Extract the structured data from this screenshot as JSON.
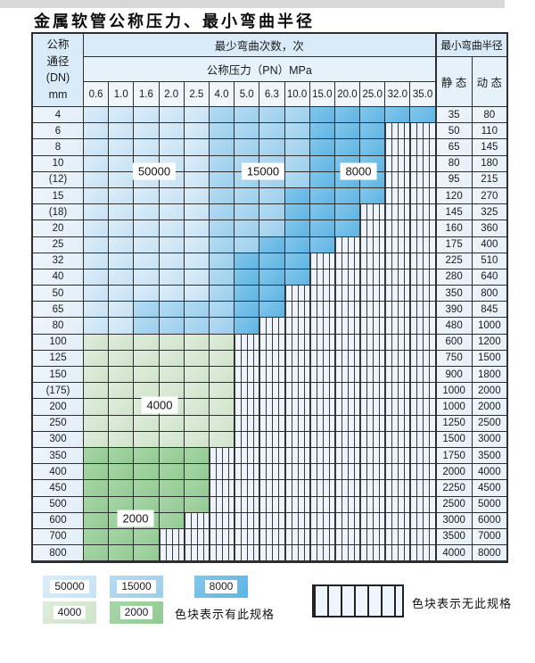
{
  "title": "金属软管公称压力、最小弯曲半径",
  "header": {
    "dn_lines": [
      "公称",
      "通径",
      "(DN)",
      "mm"
    ],
    "bend_header": "最少弯曲次数，次",
    "pn_header": "公称压力（PN）MPa",
    "pressures": [
      "0.6",
      "1.0",
      "1.6",
      "2.0",
      "2.5",
      "4.0",
      "5.0",
      "6.3",
      "10.0",
      "15.0",
      "20.0",
      "25.0",
      "32.0",
      "35.0"
    ],
    "radius_header": "最小弯曲半径",
    "static_label": "静 态",
    "dynamic_label": "动 态"
  },
  "zone_labels": {
    "l50000": "50000",
    "l15000": "15000",
    "l8000": "8000",
    "l4000": "4000",
    "l2000": "2000"
  },
  "rows": [
    {
      "dn": "4",
      "c50": 5,
      "c15": 9,
      "c8": 14,
      "c4": 0,
      "c2": 0,
      "static": "35",
      "dynamic": "80"
    },
    {
      "dn": "6",
      "c50": 5,
      "c15": 9,
      "c8": 12,
      "c4": 0,
      "c2": 0,
      "static": "50",
      "dynamic": "110"
    },
    {
      "dn": "8",
      "c50": 5,
      "c15": 9,
      "c8": 12,
      "c4": 0,
      "c2": 0,
      "static": "65",
      "dynamic": "145"
    },
    {
      "dn": "10",
      "c50": 5,
      "c15": 9,
      "c8": 12,
      "c4": 0,
      "c2": 0,
      "static": "80",
      "dynamic": "180"
    },
    {
      "dn": "(12)",
      "c50": 5,
      "c15": 9,
      "c8": 12,
      "c4": 0,
      "c2": 0,
      "static": "95",
      "dynamic": "215"
    },
    {
      "dn": "15",
      "c50": 5,
      "c15": 8,
      "c8": 12,
      "c4": 0,
      "c2": 0,
      "static": "120",
      "dynamic": "270"
    },
    {
      "dn": "(18)",
      "c50": 5,
      "c15": 8,
      "c8": 11,
      "c4": 0,
      "c2": 0,
      "static": "145",
      "dynamic": "325"
    },
    {
      "dn": "20",
      "c50": 5,
      "c15": 8,
      "c8": 11,
      "c4": 0,
      "c2": 0,
      "static": "160",
      "dynamic": "360"
    },
    {
      "dn": "25",
      "c50": 5,
      "c15": 7,
      "c8": 10,
      "c4": 0,
      "c2": 0,
      "static": "175",
      "dynamic": "400"
    },
    {
      "dn": "32",
      "c50": 5,
      "c15": 6,
      "c8": 9,
      "c4": 0,
      "c2": 0,
      "static": "225",
      "dynamic": "510"
    },
    {
      "dn": "40",
      "c50": 5,
      "c15": 6,
      "c8": 9,
      "c4": 0,
      "c2": 0,
      "static": "280",
      "dynamic": "640"
    },
    {
      "dn": "50",
      "c50": 5,
      "c15": 6,
      "c8": 8,
      "c4": 0,
      "c2": 0,
      "static": "350",
      "dynamic": "800"
    },
    {
      "dn": "65",
      "c50": 2,
      "c15": 6,
      "c8": 8,
      "c4": 0,
      "c2": 0,
      "static": "390",
      "dynamic": "845"
    },
    {
      "dn": "80",
      "c50": 2,
      "c15": 6,
      "c8": 7,
      "c4": 0,
      "c2": 0,
      "static": "480",
      "dynamic": "1000"
    },
    {
      "dn": "100",
      "c50": 0,
      "c15": 0,
      "c8": 0,
      "c4": 6,
      "c2": 0,
      "static": "600",
      "dynamic": "1200"
    },
    {
      "dn": "125",
      "c50": 0,
      "c15": 0,
      "c8": 0,
      "c4": 6,
      "c2": 0,
      "static": "750",
      "dynamic": "1500"
    },
    {
      "dn": "150",
      "c50": 0,
      "c15": 0,
      "c8": 0,
      "c4": 6,
      "c2": 0,
      "static": "900",
      "dynamic": "1800"
    },
    {
      "dn": "(175)",
      "c50": 0,
      "c15": 0,
      "c8": 0,
      "c4": 6,
      "c2": 0,
      "static": "1000",
      "dynamic": "2000"
    },
    {
      "dn": "200",
      "c50": 0,
      "c15": 0,
      "c8": 0,
      "c4": 6,
      "c2": 0,
      "static": "1000",
      "dynamic": "2000"
    },
    {
      "dn": "250",
      "c50": 0,
      "c15": 0,
      "c8": 0,
      "c4": 6,
      "c2": 0,
      "static": "1250",
      "dynamic": "2500"
    },
    {
      "dn": "300",
      "c50": 0,
      "c15": 0,
      "c8": 0,
      "c4": 6,
      "c2": 0,
      "static": "1500",
      "dynamic": "3000"
    },
    {
      "dn": "350",
      "c50": 0,
      "c15": 0,
      "c8": 0,
      "c4": 0,
      "c2": 5,
      "static": "1750",
      "dynamic": "3500"
    },
    {
      "dn": "400",
      "c50": 0,
      "c15": 0,
      "c8": 0,
      "c4": 0,
      "c2": 5,
      "static": "2000",
      "dynamic": "4000"
    },
    {
      "dn": "450",
      "c50": 0,
      "c15": 0,
      "c8": 0,
      "c4": 0,
      "c2": 5,
      "static": "2250",
      "dynamic": "4500"
    },
    {
      "dn": "500",
      "c50": 0,
      "c15": 0,
      "c8": 0,
      "c4": 0,
      "c2": 5,
      "static": "2500",
      "dynamic": "5000"
    },
    {
      "dn": "600",
      "c50": 0,
      "c15": 0,
      "c8": 0,
      "c4": 0,
      "c2": 4,
      "static": "3000",
      "dynamic": "6000"
    },
    {
      "dn": "700",
      "c50": 0,
      "c15": 0,
      "c8": 0,
      "c4": 0,
      "c2": 3,
      "static": "3500",
      "dynamic": "7000"
    },
    {
      "dn": "800",
      "c50": 0,
      "c15": 0,
      "c8": 0,
      "c4": 0,
      "c2": 3,
      "static": "4000",
      "dynamic": "8000"
    }
  ],
  "legend": {
    "items": [
      {
        "label": "50000",
        "zone": "z50"
      },
      {
        "label": "15000",
        "zone": "z15"
      },
      {
        "label": "8000",
        "zone": "z8"
      },
      {
        "label": "4000",
        "zone": "z4"
      },
      {
        "label": "2000",
        "zone": "z2"
      }
    ],
    "available_note": "色块表示有此规格",
    "none_note": "色块表示无此规格"
  },
  "palette": {
    "blue_50000": "#cde5f6",
    "blue_15000": "#a6d3ef",
    "blue_8000": "#6fbce7",
    "green_4000": "#d7e9d4",
    "green_2000": "#9cd09c",
    "hatch_bg": "#edf4fb",
    "border": "#2e2e2e",
    "header_bg": "#d9ebf8"
  }
}
